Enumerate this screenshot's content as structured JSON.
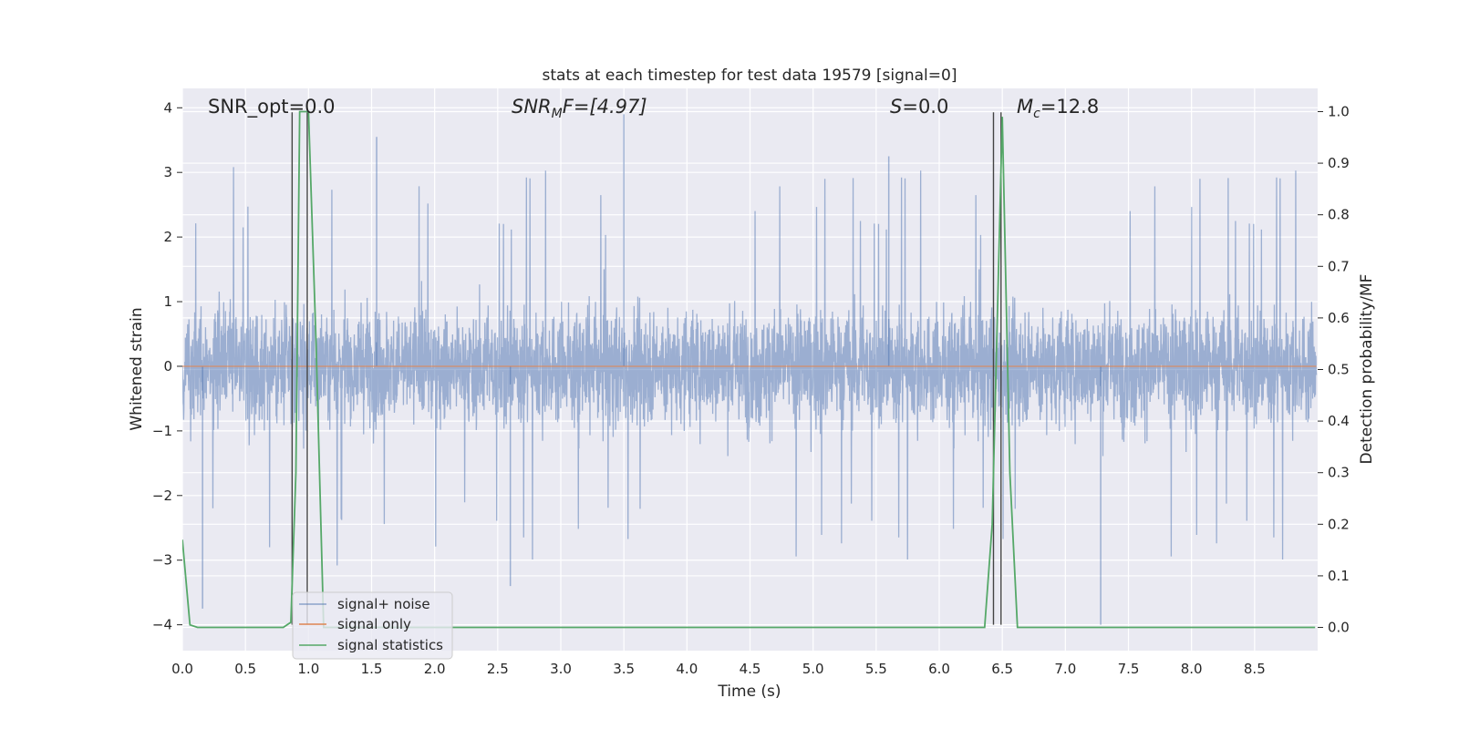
{
  "chart_data": {
    "type": "line",
    "title": "stats at each timestep for test data 19579 [signal=0]",
    "xlabel": "Time (s)",
    "ylabel": "Whitened strain",
    "ylabel_right": "Detection probability/MF",
    "xlim": [
      0.0,
      9.0
    ],
    "ylim": [
      -4.4,
      4.3
    ],
    "ylim_right": [
      -0.045,
      1.045
    ],
    "x_ticks": [
      "0.0",
      "0.5",
      "1.0",
      "1.5",
      "2.0",
      "2.5",
      "3.0",
      "3.5",
      "4.0",
      "4.5",
      "5.0",
      "5.5",
      "6.0",
      "6.5",
      "7.0",
      "7.5",
      "8.0",
      "8.5"
    ],
    "y_ticks": [
      "−4",
      "−3",
      "−2",
      "−1",
      "0",
      "1",
      "2",
      "3",
      "4"
    ],
    "y_ticks_right": [
      "0.0",
      "0.1",
      "0.2",
      "0.3",
      "0.4",
      "0.5",
      "0.6",
      "0.7",
      "0.8",
      "0.9",
      "1.0"
    ],
    "grid": true,
    "legend_position": "lower-left",
    "annotations": [
      {
        "text": "SNR_opt=0.0"
      },
      {
        "text": "SNR",
        "sub": "M",
        "tail": "F=[4.97]"
      },
      {
        "text": "S",
        "tail": "=0.0"
      },
      {
        "text": "M",
        "sub": "c",
        "tail": "=12.8"
      }
    ],
    "series": [
      {
        "name": "signal+ noise",
        "color": "#4c72b0",
        "axis": "left",
        "description_of_values": "whitened strain noise, approximately zero-mean with envelope about ±1.5",
        "x_range": [
          0.0,
          8.99
        ],
        "envelope": 1.55,
        "peaks": [
          3.55,
          3.9,
          3.25,
          -3.75,
          -4.0,
          -3.4
        ]
      },
      {
        "name": "signal only",
        "color": "#dd8452",
        "axis": "left",
        "x": [
          0.0,
          8.99
        ],
        "y": [
          0.0,
          0.0
        ]
      },
      {
        "name": "signal statistics",
        "color": "#55a868",
        "axis": "right",
        "x": [
          0.0,
          0.06,
          0.12,
          0.8,
          0.86,
          0.9,
          0.93,
          1.0,
          1.06,
          1.12,
          6.36,
          6.42,
          6.5,
          6.56,
          6.62,
          8.98
        ],
        "y": [
          0.17,
          0.005,
          0.0,
          0.0,
          0.01,
          0.3,
          1.0,
          1.0,
          0.55,
          0.0,
          0.0,
          0.2,
          0.99,
          0.3,
          0.0,
          0.0
        ]
      }
    ],
    "vertical_lines": [
      {
        "color": "#444444",
        "x": [
          0.87,
          0.99,
          6.43,
          6.49
        ],
        "ymin": -4.0,
        "ymax": 3.93
      }
    ]
  }
}
